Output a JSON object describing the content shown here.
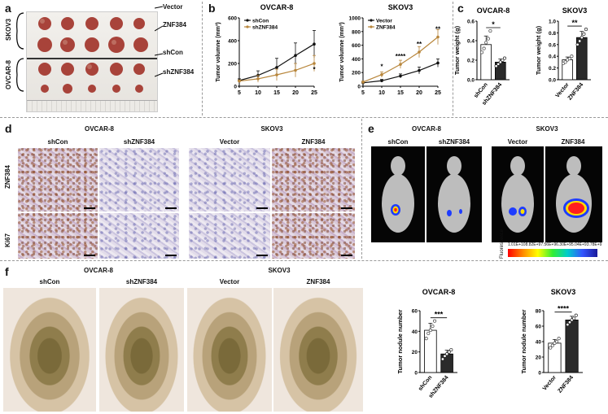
{
  "panels": {
    "a": {
      "label": "a",
      "rows": [
        "Vector",
        "ZNF384",
        "shCon",
        "shZNF384"
      ],
      "groups": [
        "SKOV3",
        "OVCAR-8"
      ]
    },
    "b": {
      "label": "b",
      "left_title": "OVCAR-8",
      "right_title": "SKOV3",
      "ylabel": "Tumor volumne (mm³)",
      "legend_left": [
        "shCon",
        "shZNF384"
      ],
      "legend_right": [
        "Vector",
        "ZNF384"
      ]
    },
    "c": {
      "label": "c",
      "left_title": "OVCAR-8",
      "right_title": "SKOV3",
      "ylabel": "Tumor weight (g)"
    },
    "d": {
      "label": "d",
      "left_title": "OVCAR-8",
      "right_title": "SKOV3",
      "cols": [
        "shCon",
        "shZNF384",
        "Vector",
        "ZNF384"
      ],
      "rows": [
        "ZNF384",
        "Ki67"
      ]
    },
    "e": {
      "label": "e",
      "left_title": "OVCAR-8",
      "right_title": "SKOV3",
      "cols": [
        "shCon",
        "shZNF384",
        "Vector",
        "ZNF384"
      ],
      "colorbar_title": "Fluorescence",
      "colorbar_ticks": [
        "1.01E+10",
        "8.82E+9",
        "7.56E+9",
        "6.30E+9",
        "5.04E+9",
        "3.78E+9"
      ]
    },
    "f": {
      "label": "f",
      "left_title": "OVCAR-8",
      "right_title": "SKOV3",
      "cols": [
        "shCon",
        "shZNF384",
        "Vector",
        "ZNF384"
      ],
      "chart_left_title": "OVCAR-8",
      "chart_right_title": "SKOV3",
      "ylabel": "Tumor nodule number"
    }
  },
  "chart_data": [
    {
      "type": "line",
      "title": "OVCAR-8",
      "ylabel": "Tumor volumne (mm³)",
      "x": [
        5,
        10,
        15,
        20,
        25
      ],
      "ylim": [
        0,
        600
      ],
      "yticks": [
        0,
        200,
        400,
        600
      ],
      "series": [
        {
          "name": "shCon",
          "values": [
            50,
            95,
            165,
            270,
            370
          ],
          "err": [
            15,
            40,
            80,
            110,
            120
          ]
        },
        {
          "name": "shZNF384",
          "values": [
            45,
            65,
            100,
            140,
            200
          ],
          "err": [
            10,
            30,
            50,
            60,
            70
          ]
        }
      ],
      "annotations": [
        "*"
      ]
    },
    {
      "type": "line",
      "title": "SKOV3",
      "ylabel": "Tumor volumne (mm³)",
      "x": [
        5,
        10,
        15,
        20,
        25
      ],
      "ylim": [
        0,
        1000
      ],
      "yticks": [
        0,
        200,
        400,
        600,
        800,
        1000
      ],
      "series": [
        {
          "name": "Vector",
          "values": [
            50,
            80,
            150,
            230,
            340
          ],
          "err": [
            10,
            20,
            30,
            50,
            60
          ]
        },
        {
          "name": "ZNF384",
          "values": [
            60,
            170,
            320,
            500,
            720
          ],
          "err": [
            15,
            40,
            60,
            80,
            110
          ]
        }
      ],
      "annotations": [
        "*",
        "****",
        "**",
        "**"
      ]
    },
    {
      "type": "bar",
      "title": "OVCAR-8",
      "ylabel": "Tumor weight (g)",
      "categories": [
        "shCon",
        "shZNF384"
      ],
      "values": [
        0.36,
        0.18
      ],
      "points": [
        [
          0.28,
          0.32,
          0.38,
          0.42,
          0.5
        ],
        [
          0.14,
          0.16,
          0.18,
          0.2,
          0.22
        ]
      ],
      "ylim": [
        0,
        0.6
      ],
      "yticks": [
        0.0,
        0.2,
        0.4,
        0.6
      ],
      "annotation": "*"
    },
    {
      "type": "bar",
      "title": "SKOV3",
      "ylabel": "Tumor weight (g)",
      "categories": [
        "Vector",
        "ZNF384"
      ],
      "values": [
        0.34,
        0.72
      ],
      "points": [
        [
          0.28,
          0.3,
          0.34,
          0.36,
          0.4
        ],
        [
          0.6,
          0.66,
          0.72,
          0.78,
          0.86
        ]
      ],
      "ylim": [
        0,
        1.0
      ],
      "yticks": [
        0.0,
        0.2,
        0.4,
        0.6,
        0.8,
        1.0
      ],
      "annotation": "**"
    },
    {
      "type": "bar",
      "title": "OVCAR-8",
      "ylabel": "Tumor nodule number",
      "categories": [
        "shCon",
        "shZNF384"
      ],
      "values": [
        41,
        18
      ],
      "points": [
        [
          33,
          38,
          41,
          45,
          50
        ],
        [
          13,
          16,
          18,
          20,
          22
        ]
      ],
      "ylim": [
        0,
        60
      ],
      "yticks": [
        0,
        20,
        40,
        60
      ],
      "annotation": "***"
    },
    {
      "type": "bar",
      "title": "SKOV3",
      "ylabel": "Tumor nodule number",
      "categories": [
        "Vector",
        "ZNF384"
      ],
      "values": [
        38,
        68
      ],
      "points": [
        [
          32,
          35,
          38,
          40,
          44
        ],
        [
          62,
          65,
          68,
          70,
          74
        ]
      ],
      "ylim": [
        0,
        80
      ],
      "yticks": [
        0,
        20,
        40,
        60,
        80
      ],
      "annotation": "****"
    }
  ],
  "colors": {
    "series_dark": "#111111",
    "series_gold": "#b8863b",
    "bar_dark": "#2a2a2a",
    "bar_light": "#ffffff"
  }
}
